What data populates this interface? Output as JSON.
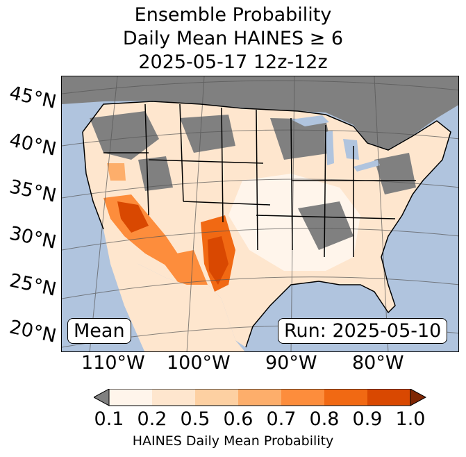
{
  "title_lines": [
    "Ensemble Probability",
    "Daily Mean HAINES ≥ 6",
    "2025-05-17 12z-12z"
  ],
  "map": {
    "lat_labels": [
      "45°N",
      "40°N",
      "35°N",
      "30°N",
      "25°N",
      "20°N"
    ],
    "lon_labels": [
      "110°W",
      "100°W",
      "90°W",
      "80°W"
    ],
    "stat_label": "Mean",
    "run_label": "Run: 2025-05-10",
    "colors": {
      "ocean": "#b0c4de",
      "land_no_data": "#808080",
      "borders": "#000000",
      "graticule": "#555555"
    }
  },
  "colorbar": {
    "label": "HAINES Daily Mean Probability",
    "ticks": [
      "0.1",
      "0.2",
      "0.5",
      "0.6",
      "0.7",
      "0.8",
      "0.9",
      "1.0"
    ],
    "colors": [
      "#fff5eb",
      "#fee6ce",
      "#fdd0a2",
      "#fdae6b",
      "#fd8d3c",
      "#f16913",
      "#d94801",
      "#a63603"
    ],
    "under_color": "#808080",
    "over_color": "#7f2704"
  }
}
